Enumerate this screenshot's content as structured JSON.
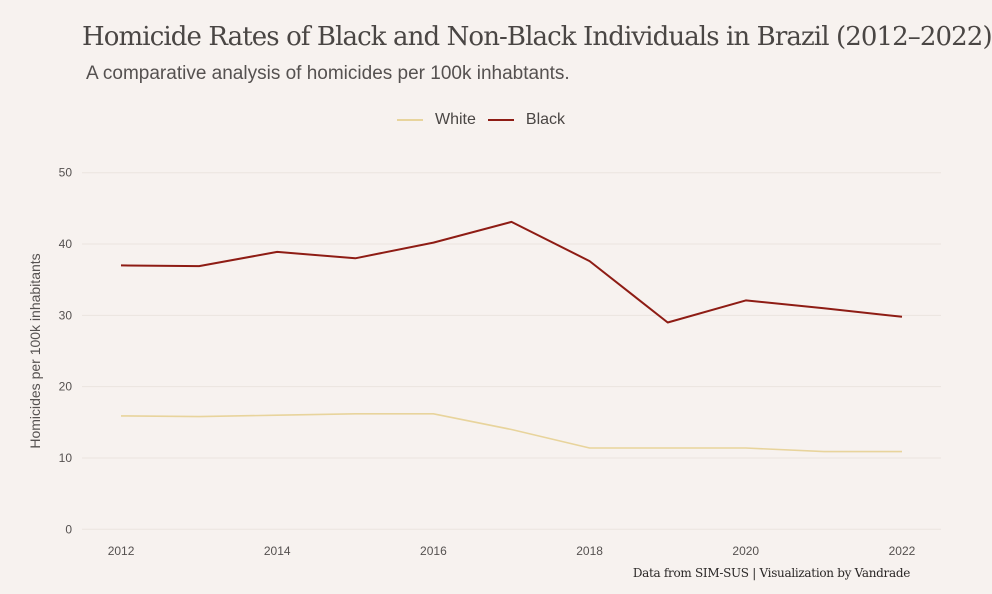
{
  "chart_data": {
    "type": "line",
    "title": "Homicide Rates of Black and Non-Black Individuals in Brazil (2012–2022)",
    "subtitle": "A comparative analysis of homicides per 100k inhabtants.",
    "xlabel": "",
    "ylabel": "Homicides per 100k inhabitants",
    "x": [
      2012,
      2013,
      2014,
      2015,
      2016,
      2017,
      2018,
      2019,
      2020,
      2021,
      2022
    ],
    "xticks": [
      2012,
      2014,
      2016,
      2018,
      2020,
      2022
    ],
    "yticks": [
      0,
      10,
      20,
      30,
      40,
      50
    ],
    "xlim": [
      2011.5,
      2022.5
    ],
    "ylim": [
      -1.5,
      51.5
    ],
    "grid": true,
    "legend_position": "top-center",
    "series": [
      {
        "name": "White",
        "color": "#e8d49c",
        "values": [
          15.9,
          15.8,
          16.0,
          16.2,
          16.2,
          14.0,
          11.4,
          11.4,
          11.4,
          10.9,
          10.9
        ]
      },
      {
        "name": "Black",
        "color": "#8e1c14",
        "values": [
          37.0,
          36.9,
          38.9,
          38.0,
          40.2,
          43.1,
          37.6,
          29.0,
          32.1,
          31.0,
          29.8
        ]
      }
    ],
    "caption": "Data from SIM-SUS | Visualization by Vandrade"
  }
}
